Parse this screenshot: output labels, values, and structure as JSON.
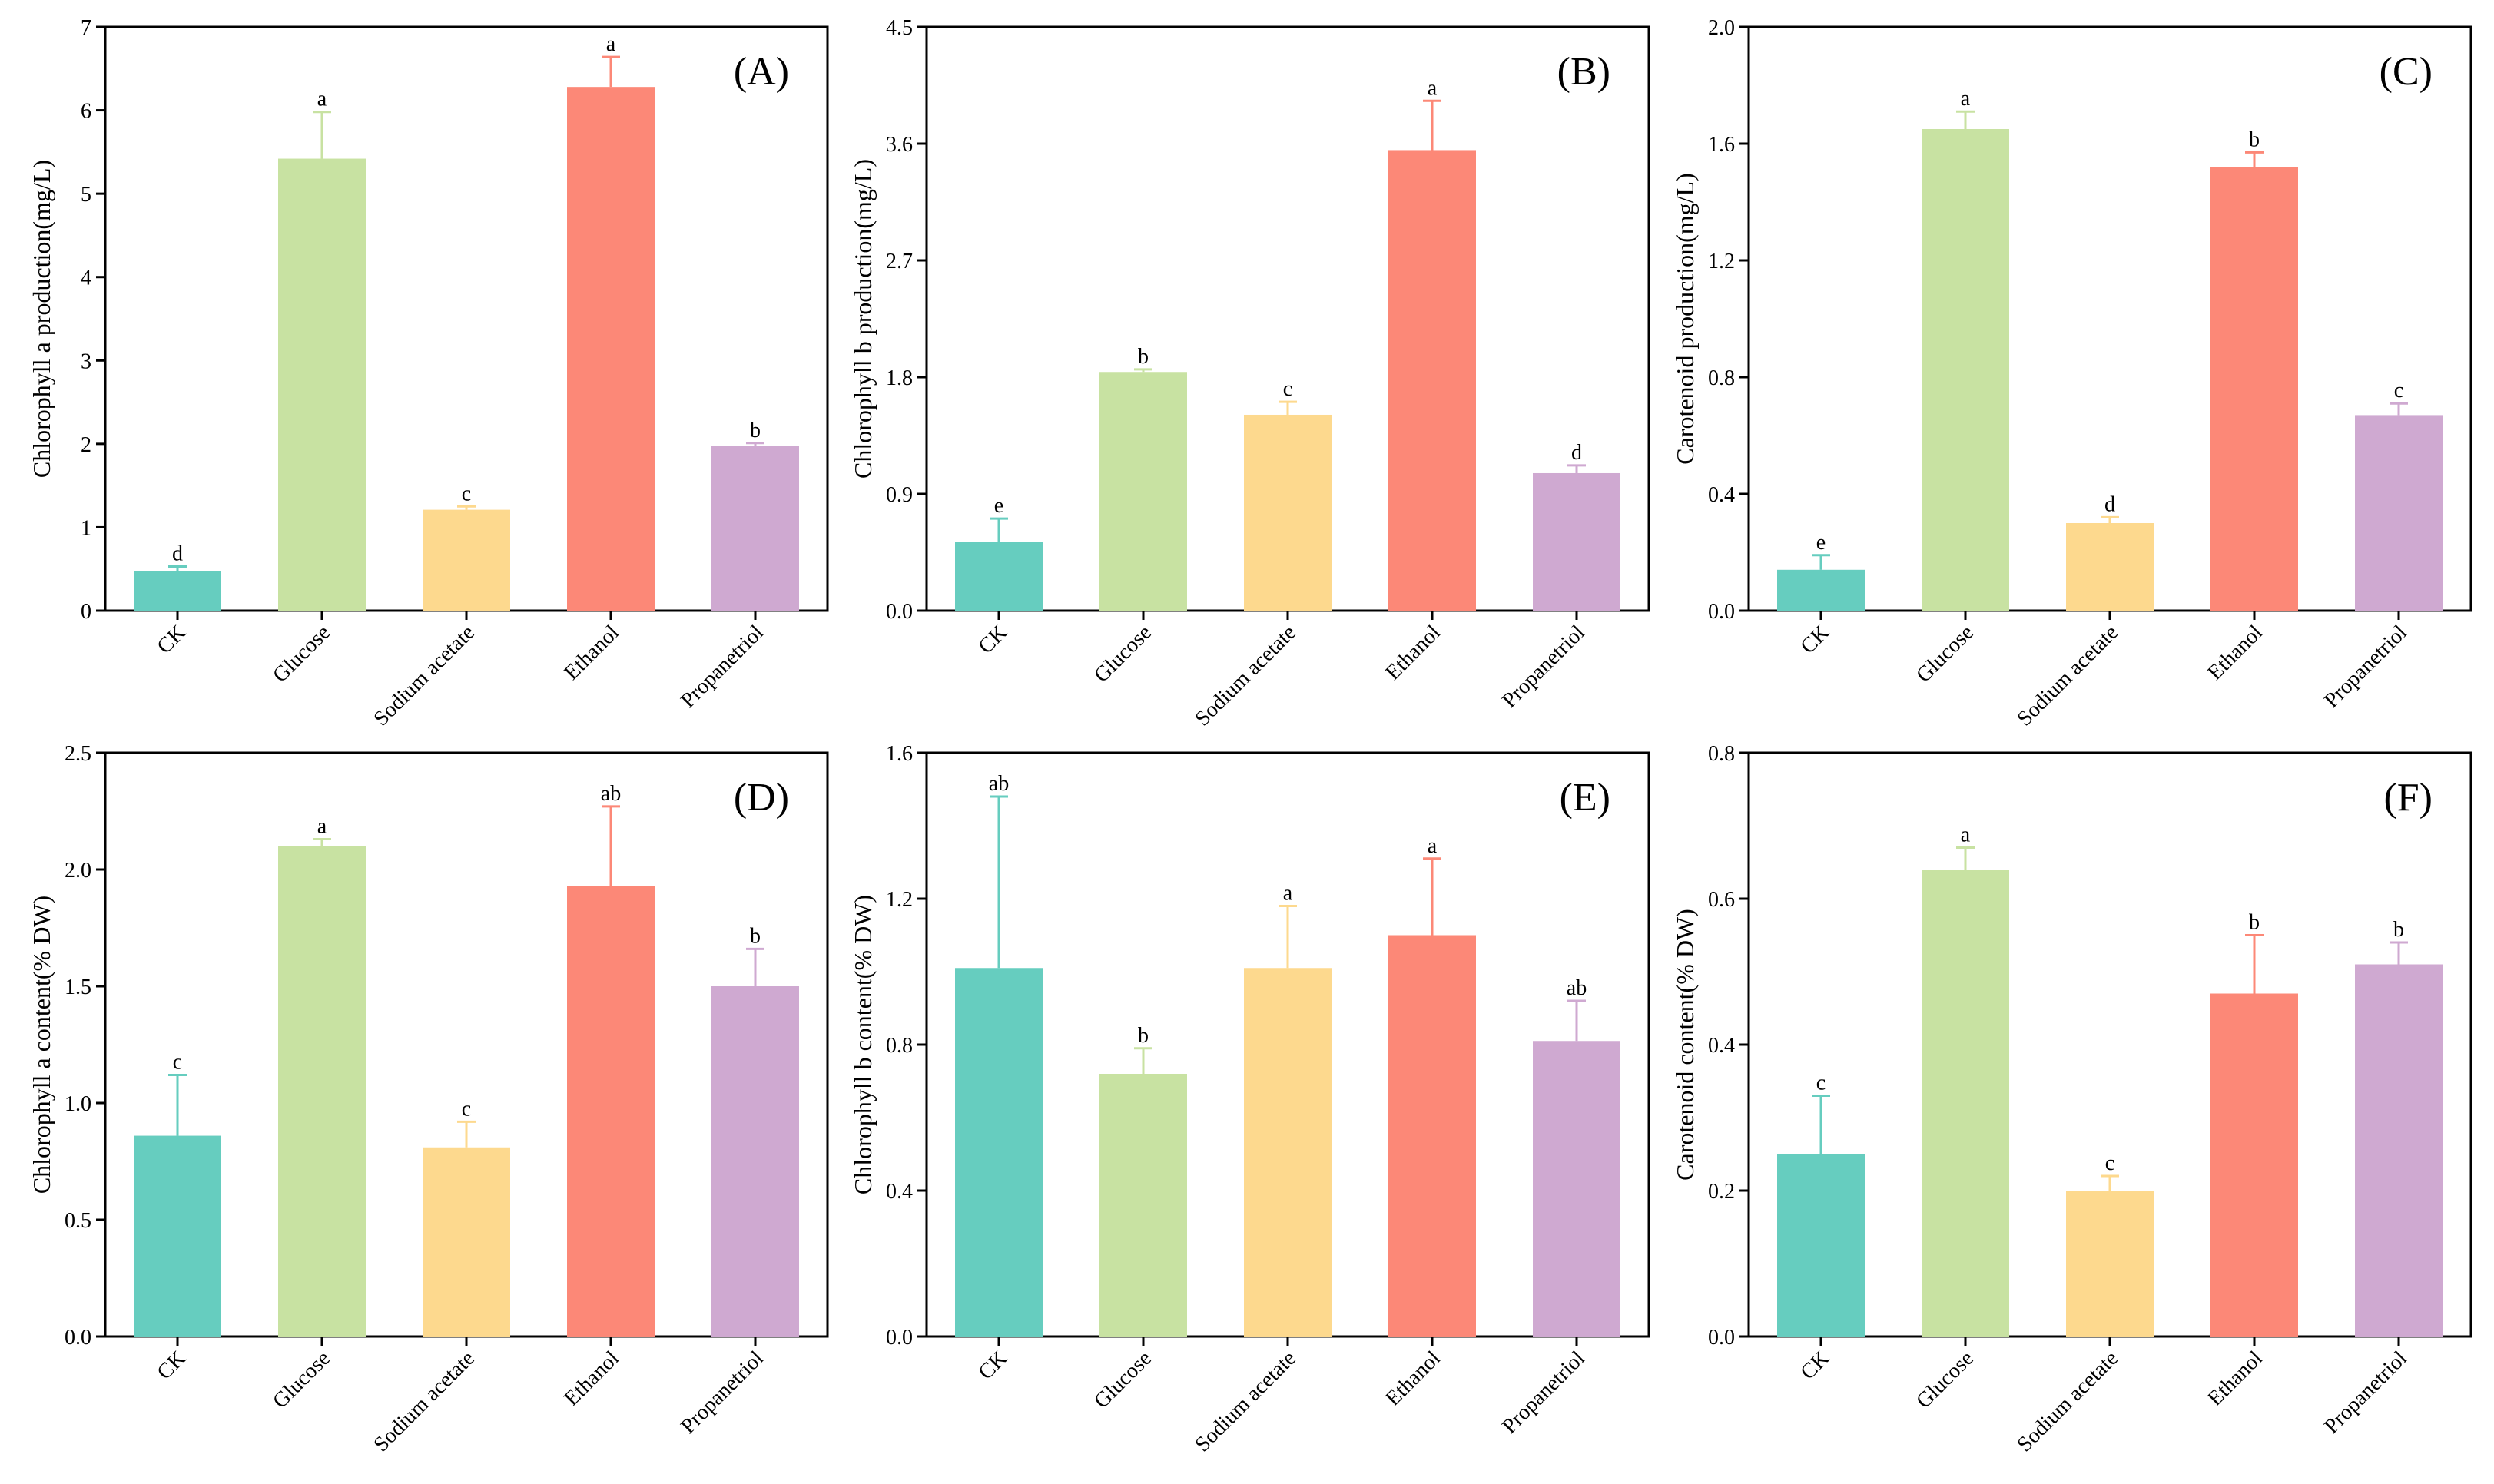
{
  "figure": {
    "categories": [
      "CK",
      "Glucose",
      "Sodium acetate",
      "Ethanol",
      "Propanetriol"
    ],
    "colors": [
      "#66cdbf",
      "#c8e2a2",
      "#fdd98e",
      "#fc8877",
      "#cfa9d1"
    ]
  },
  "chart_data": [
    {
      "type": "bar",
      "panel": "(A)",
      "ylabel": "Chlorophyll a production(mg/L)",
      "ylim": [
        0,
        7
      ],
      "yticks": [
        "0",
        "1",
        "2",
        "3",
        "4",
        "5",
        "6",
        "7"
      ],
      "categories": [
        "CK",
        "Glucose",
        "Sodium acetate",
        "Ethanol",
        "Propanetriol"
      ],
      "values": [
        0.47,
        5.42,
        1.21,
        6.28,
        1.98
      ],
      "errors": [
        0.06,
        0.56,
        0.04,
        0.36,
        0.03
      ],
      "letters": [
        "d",
        "a",
        "c",
        "a",
        "b"
      ]
    },
    {
      "type": "bar",
      "panel": "(B)",
      "ylabel": "Chlorophyll b production(mg/L)",
      "ylim": [
        0,
        4.5
      ],
      "yticks": [
        "0.0",
        "0.9",
        "1.8",
        "2.7",
        "3.6",
        "4.5"
      ],
      "categories": [
        "CK",
        "Glucose",
        "Sodium acetate",
        "Ethanol",
        "Propanetriol"
      ],
      "values": [
        0.53,
        1.84,
        1.51,
        3.55,
        1.06
      ],
      "errors": [
        0.18,
        0.02,
        0.1,
        0.38,
        0.06
      ],
      "letters": [
        "e",
        "b",
        "c",
        "a",
        "d"
      ]
    },
    {
      "type": "bar",
      "panel": "(C)",
      "ylabel": "Carotenoid production(mg/L)",
      "ylim": [
        0,
        2.0
      ],
      "yticks": [
        "0.0",
        "0.4",
        "0.8",
        "1.2",
        "1.6",
        "2.0"
      ],
      "categories": [
        "CK",
        "Glucose",
        "Sodium acetate",
        "Ethanol",
        "Propanetriol"
      ],
      "values": [
        0.14,
        1.65,
        0.3,
        1.52,
        0.67
      ],
      "errors": [
        0.05,
        0.06,
        0.02,
        0.05,
        0.04
      ],
      "letters": [
        "e",
        "a",
        "d",
        "b",
        "c"
      ]
    },
    {
      "type": "bar",
      "panel": "(D)",
      "ylabel": "Chlorophyll a content(% DW)",
      "ylim": [
        0,
        2.5
      ],
      "yticks": [
        "0.0",
        "0.5",
        "1.0",
        "1.5",
        "2.0",
        "2.5"
      ],
      "categories": [
        "CK",
        "Glucose",
        "Sodium acetate",
        "Ethanol",
        "Propanetriol"
      ],
      "values": [
        0.86,
        2.1,
        0.81,
        1.93,
        1.5
      ],
      "errors": [
        0.26,
        0.03,
        0.11,
        0.34,
        0.16
      ],
      "letters": [
        "c",
        "a",
        "c",
        "ab",
        "b"
      ]
    },
    {
      "type": "bar",
      "panel": "(E)",
      "ylabel": "Chlorophyll b content(% DW)",
      "ylim": [
        0,
        1.6
      ],
      "yticks": [
        "0.0",
        "0.4",
        "0.8",
        "1.2",
        "1.6"
      ],
      "categories": [
        "CK",
        "Glucose",
        "Sodium acetate",
        "Ethanol",
        "Propanetriol"
      ],
      "values": [
        1.01,
        0.72,
        1.01,
        1.1,
        0.81
      ],
      "errors": [
        0.47,
        0.07,
        0.17,
        0.21,
        0.11
      ],
      "letters": [
        "ab",
        "b",
        "a",
        "a",
        "ab"
      ]
    },
    {
      "type": "bar",
      "panel": "(F)",
      "ylabel": "Carotenoid content(% DW)",
      "ylim": [
        0,
        0.8
      ],
      "yticks": [
        "0.0",
        "0.2",
        "0.4",
        "0.6",
        "0.8"
      ],
      "categories": [
        "CK",
        "Glucose",
        "Sodium acetate",
        "Ethanol",
        "Propanetriol"
      ],
      "values": [
        0.25,
        0.64,
        0.2,
        0.47,
        0.51
      ],
      "errors": [
        0.08,
        0.03,
        0.02,
        0.08,
        0.03
      ],
      "letters": [
        "c",
        "a",
        "c",
        "b",
        "b"
      ]
    }
  ]
}
